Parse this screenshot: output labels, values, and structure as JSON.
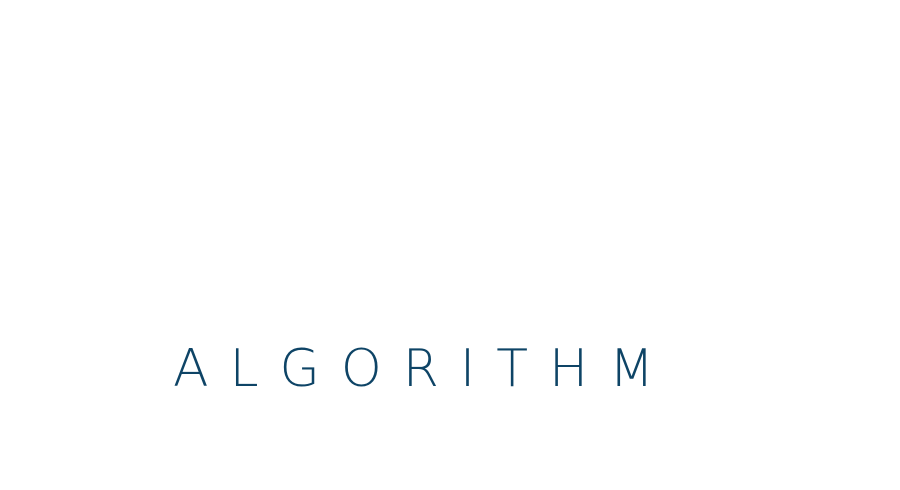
{
  "logo": {
    "text": "ALGORITHM",
    "color": "#0e4466"
  },
  "background_color": "#ffffff"
}
